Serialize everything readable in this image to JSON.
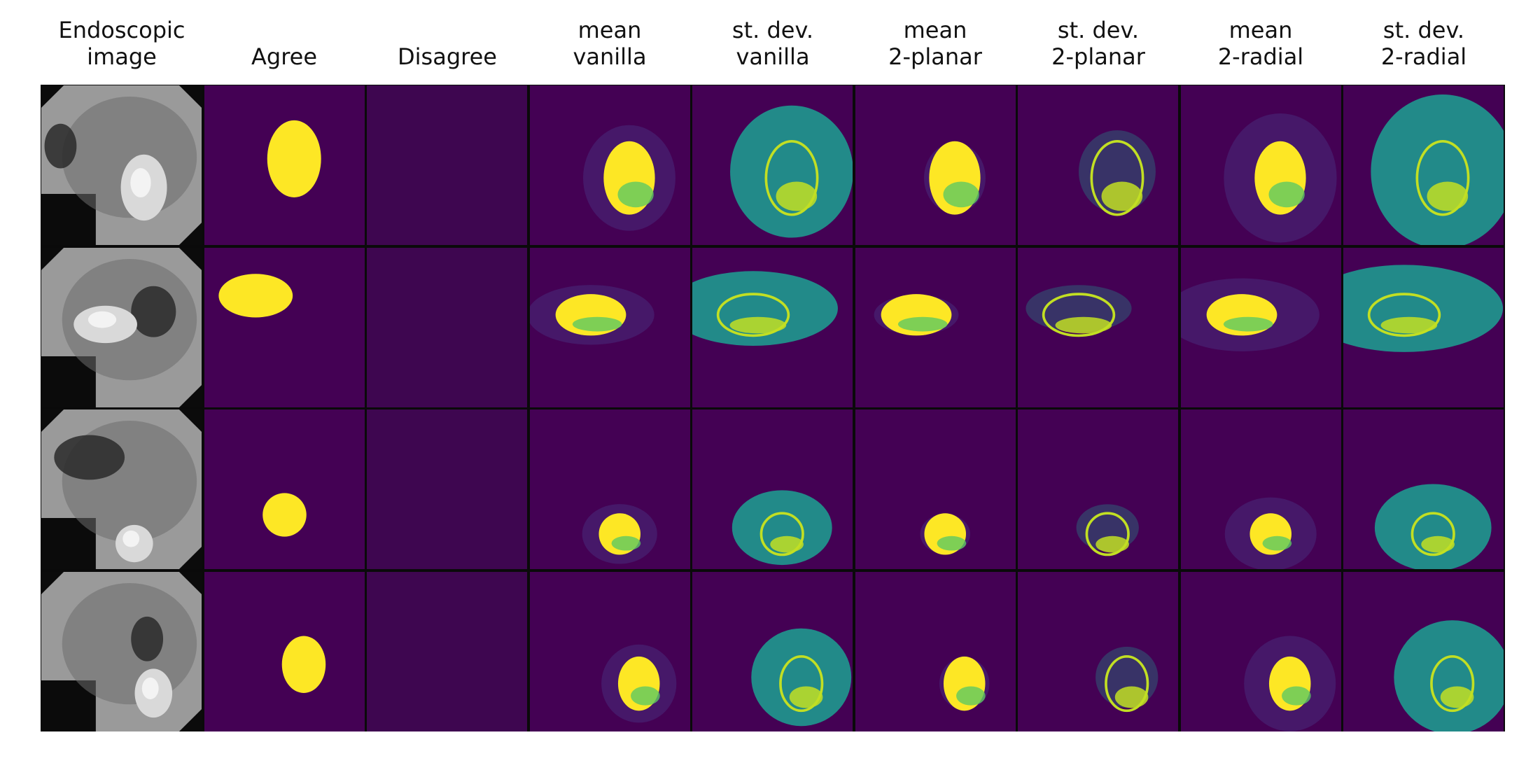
{
  "columns": [
    {
      "key": "endoscopic",
      "line1": "Endoscopic",
      "line2": "image"
    },
    {
      "key": "agree",
      "line1": "",
      "line2": "Agree"
    },
    {
      "key": "disagree",
      "line1": "",
      "line2": "Disagree"
    },
    {
      "key": "mean_vanilla",
      "line1": "mean",
      "line2": "vanilla"
    },
    {
      "key": "std_vanilla",
      "line1": "st. dev.",
      "line2": "vanilla"
    },
    {
      "key": "mean_2planar",
      "line1": "mean",
      "line2": "2-planar"
    },
    {
      "key": "std_2planar",
      "line1": "st. dev.",
      "line2": "2-planar"
    },
    {
      "key": "mean_2radial",
      "line1": "mean",
      "line2": "2-radial"
    },
    {
      "key": "std_2radial",
      "line1": "st. dev.",
      "line2": "2-radial"
    }
  ],
  "colors": {
    "background": "#440154",
    "disagree_bg": "#3e0650",
    "yellow": "#fde725",
    "yellow_green": "#c2df23",
    "green": "#5ec962",
    "teal": "#21918c",
    "blue": "#3b528b",
    "purple_mid": "#482878",
    "gray_light": "#b8b8b8",
    "gray_dark": "#555555"
  },
  "rows": 4
}
